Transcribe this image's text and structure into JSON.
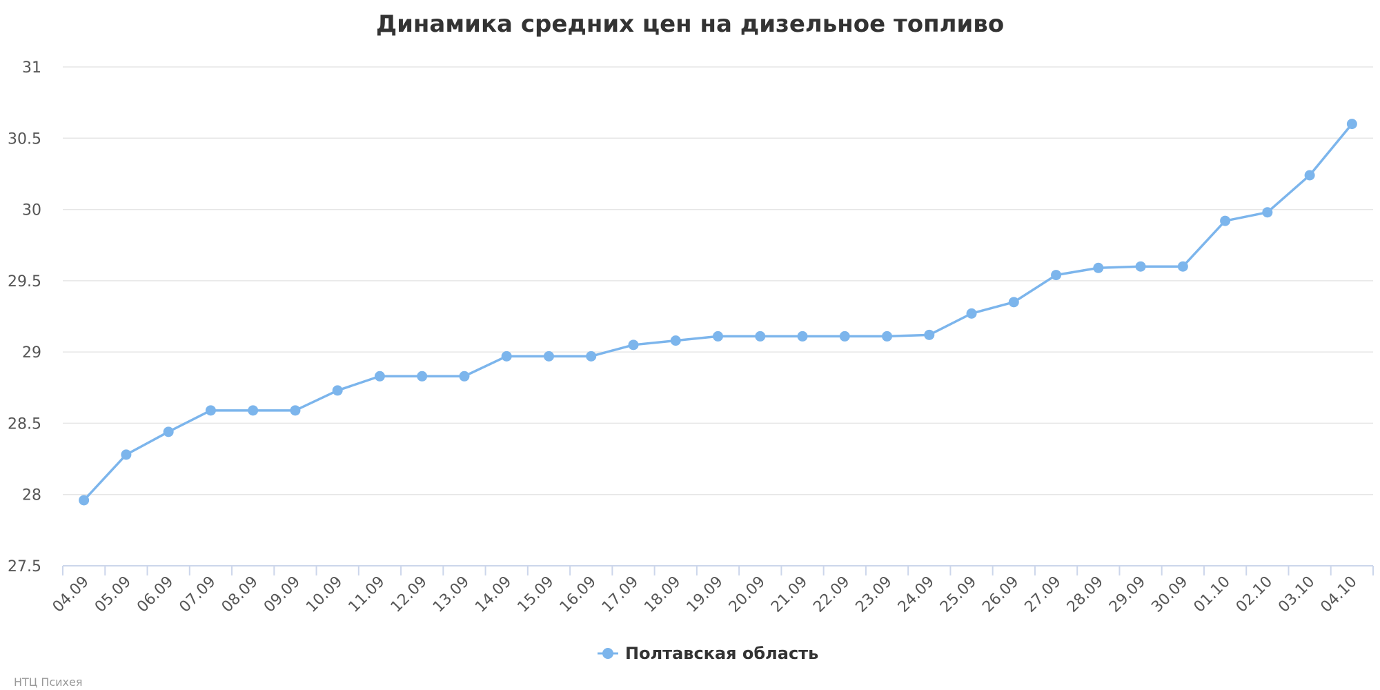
{
  "chart_data": {
    "type": "line",
    "title": "Динамика средних цен на дизельное топливо",
    "xlabel": "",
    "ylabel": "",
    "ylim": [
      27.5,
      31
    ],
    "yticks": [
      "27.5",
      "28",
      "28.5",
      "29",
      "29.5",
      "30",
      "30.5",
      "31"
    ],
    "grid": true,
    "legend_position": "bottom-center",
    "categories": [
      "04.09",
      "05.09",
      "06.09",
      "07.09",
      "08.09",
      "09.09",
      "10.09",
      "11.09",
      "12.09",
      "13.09",
      "14.09",
      "15.09",
      "16.09",
      "17.09",
      "18.09",
      "19.09",
      "20.09",
      "21.09",
      "22.09",
      "23.09",
      "24.09",
      "25.09",
      "26.09",
      "27.09",
      "28.09",
      "29.09",
      "30.09",
      "01.10",
      "02.10",
      "03.10",
      "04.10"
    ],
    "series": [
      {
        "name": "Полтавская область",
        "color": "#7cb5ec",
        "values": [
          27.96,
          28.28,
          28.44,
          28.59,
          28.59,
          28.59,
          28.73,
          28.83,
          28.83,
          28.83,
          28.97,
          28.97,
          28.97,
          29.05,
          29.08,
          29.11,
          29.11,
          29.11,
          29.11,
          29.11,
          29.12,
          29.27,
          29.35,
          29.54,
          29.59,
          29.6,
          29.6,
          29.92,
          29.98,
          30.24,
          30.6
        ]
      }
    ],
    "credits": "НТЦ Психея"
  }
}
